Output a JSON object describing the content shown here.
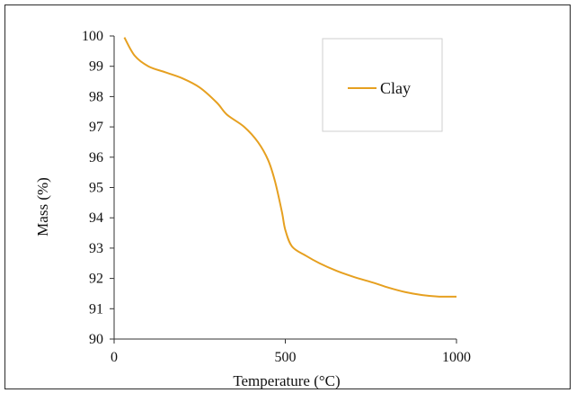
{
  "chart_data": {
    "type": "line",
    "xlabel": "Temperature (°C)",
    "ylabel": "Mass (%)",
    "xlim": [
      0,
      1000
    ],
    "ylim": [
      90,
      100
    ],
    "xticks": [
      0,
      500,
      1000
    ],
    "yticks": [
      90,
      91,
      92,
      93,
      94,
      95,
      96,
      97,
      98,
      99,
      100
    ],
    "grid": false,
    "legend_position": "top-right",
    "series": [
      {
        "name": "Clay",
        "color": "#e6a020",
        "x": [
          30,
          60,
          100,
          150,
          200,
          250,
          300,
          330,
          380,
          420,
          450,
          470,
          490,
          500,
          520,
          560,
          600,
          650,
          700,
          760,
          800,
          850,
          900,
          950,
          1000
        ],
        "y": [
          99.95,
          99.35,
          99.0,
          98.8,
          98.6,
          98.3,
          97.8,
          97.4,
          97.0,
          96.5,
          95.9,
          95.2,
          94.2,
          93.6,
          93.05,
          92.75,
          92.5,
          92.25,
          92.05,
          91.85,
          91.7,
          91.55,
          91.45,
          91.4,
          91.4
        ]
      }
    ]
  }
}
